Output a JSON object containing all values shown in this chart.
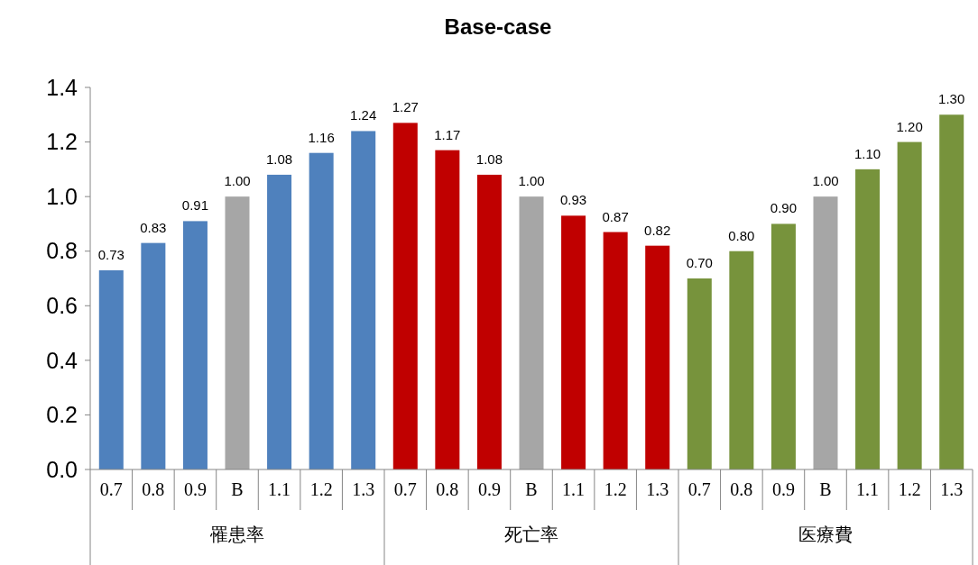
{
  "chart_data": {
    "type": "bar",
    "title": "Base-case",
    "categories": [
      "0.7",
      "0.8",
      "0.9",
      "B",
      "1.1",
      "1.2",
      "1.3",
      "0.7",
      "0.8",
      "0.9",
      "B",
      "1.1",
      "1.2",
      "1.3",
      "0.7",
      "0.8",
      "0.9",
      "B",
      "1.1",
      "1.2",
      "1.3"
    ],
    "values": [
      0.73,
      0.83,
      0.91,
      1.0,
      1.08,
      1.16,
      1.24,
      1.27,
      1.17,
      1.08,
      1.0,
      0.93,
      0.87,
      0.82,
      0.7,
      0.8,
      0.9,
      1.0,
      1.1,
      1.2,
      1.3
    ],
    "value_labels": [
      "0.73",
      "0.83",
      "0.91",
      "1.00",
      "1.08",
      "1.16",
      "1.24",
      "1.27",
      "1.17",
      "1.08",
      "1.00",
      "0.93",
      "0.87",
      "0.82",
      "0.70",
      "0.80",
      "0.90",
      "1.00",
      "1.10",
      "1.20",
      "1.30"
    ],
    "colors": [
      "#4f81bd",
      "#4f81bd",
      "#4f81bd",
      "#a6a6a6",
      "#4f81bd",
      "#4f81bd",
      "#4f81bd",
      "#c00000",
      "#c00000",
      "#c00000",
      "#a6a6a6",
      "#c00000",
      "#c00000",
      "#c00000",
      "#77933c",
      "#77933c",
      "#77933c",
      "#a6a6a6",
      "#77933c",
      "#77933c",
      "#77933c"
    ],
    "annotations": [
      "罹患率",
      "死亡率",
      "医療費"
    ],
    "ylim": [
      0,
      1.4
    ],
    "yticks": [
      {
        "value": 0,
        "label": "0.0"
      },
      {
        "value": 0.2,
        "label": "0.2"
      },
      {
        "value": 0.4,
        "label": "0.4"
      },
      {
        "value": 0.6,
        "label": "0.6"
      },
      {
        "value": 0.8,
        "label": "0.8"
      },
      {
        "value": 1.0,
        "label": "1.0"
      },
      {
        "value": 1.2,
        "label": "1.2"
      },
      {
        "value": 1.4,
        "label": "1.4"
      }
    ],
    "grid": false
  }
}
